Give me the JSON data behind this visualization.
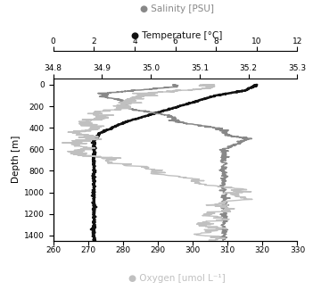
{
  "legend_salinity": "● Salinity [PSU]",
  "legend_temperature": "● Temperature [°C]",
  "legend_oxygen": "● Oxygen [umol L⁻¹]",
  "xlabel_oxygen": "Oxygen [umol L^-1]",
  "ylabel": "Depth [m]",
  "salinity_color": "#888888",
  "temperature_color": "#111111",
  "oxygen_color": "#c0c0c0",
  "salinity_xlim": [
    34.8,
    35.3
  ],
  "temperature_xlim": [
    0,
    12
  ],
  "oxygen_xlim": [
    260,
    330
  ],
  "depth_ylim": [
    1450,
    -60
  ],
  "salinity_xticks": [
    34.8,
    34.9,
    35.0,
    35.1,
    35.2,
    35.3
  ],
  "temperature_xticks": [
    0,
    2,
    4,
    6,
    8,
    10,
    12
  ],
  "oxygen_xticks": [
    260,
    270,
    280,
    290,
    300,
    310,
    320,
    330
  ],
  "depth_yticks": [
    0,
    200,
    400,
    600,
    800,
    1000,
    1200,
    1400
  ],
  "fig_width": 3.51,
  "fig_height": 3.25,
  "dpi": 100
}
